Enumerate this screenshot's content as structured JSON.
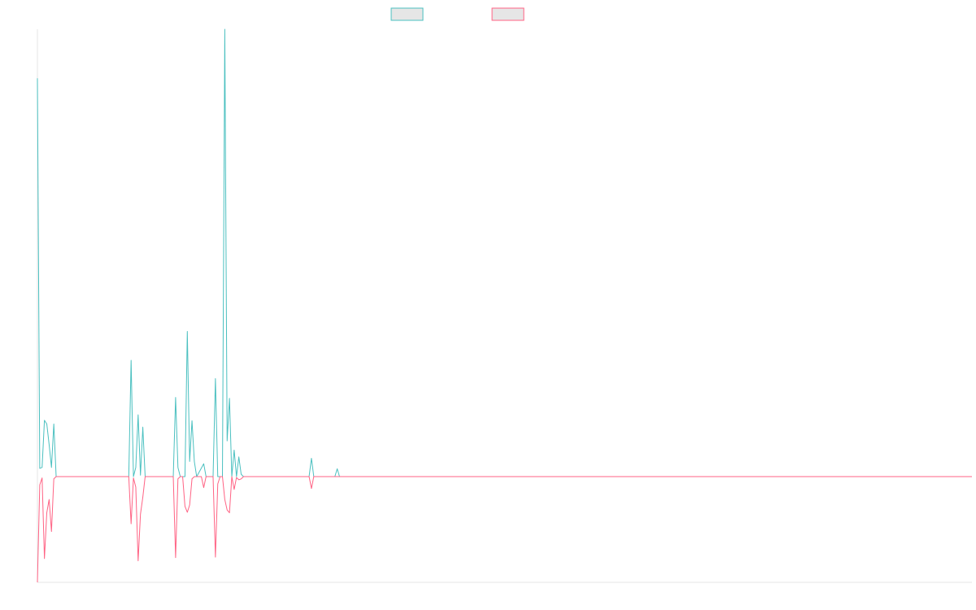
{
  "chart_data": {
    "type": "line",
    "title": "",
    "xlabel": "",
    "ylabel": "",
    "x_count": 400,
    "x_range": [
      0,
      399
    ],
    "ylim": [
      -23.1,
      97.7
    ],
    "grid": false,
    "legend_position": "top",
    "series": [
      {
        "name": "",
        "color": "#4bc0c0",
        "fill": "#e6e6e6",
        "points": [
          [
            0,
            87
          ],
          [
            1,
            1.8
          ],
          [
            2,
            2
          ],
          [
            3,
            12.3
          ],
          [
            4,
            11.5
          ],
          [
            5,
            7
          ],
          [
            6,
            2
          ],
          [
            7,
            11.5
          ],
          [
            8,
            0
          ],
          [
            35,
            0
          ],
          [
            36,
            0
          ],
          [
            37,
            0
          ],
          [
            38,
            0
          ],
          [
            39,
            0
          ],
          [
            40,
            25.4
          ],
          [
            41,
            0
          ],
          [
            42,
            2
          ],
          [
            43,
            13.5
          ],
          [
            44,
            0.3
          ],
          [
            45,
            10.8
          ],
          [
            46,
            0
          ],
          [
            58,
            0
          ],
          [
            59,
            17.3
          ],
          [
            60,
            2
          ],
          [
            61,
            0
          ],
          [
            62,
            0
          ],
          [
            63,
            0
          ],
          [
            64,
            31.7
          ],
          [
            65,
            3.3
          ],
          [
            66,
            12.2
          ],
          [
            67,
            3.3
          ],
          [
            68,
            0
          ],
          [
            71,
            2.8
          ],
          [
            72,
            0
          ],
          [
            73,
            0
          ],
          [
            74,
            0
          ],
          [
            75,
            0
          ],
          [
            76,
            21.4
          ],
          [
            77,
            0
          ],
          [
            78,
            0
          ],
          [
            79,
            0
          ],
          [
            80,
            97.7
          ],
          [
            81,
            7.8
          ],
          [
            82,
            17.1
          ],
          [
            83,
            0
          ],
          [
            84,
            5.8
          ],
          [
            85,
            0
          ],
          [
            86,
            4.3
          ],
          [
            87,
            0.5
          ],
          [
            88,
            0
          ],
          [
            115,
            0
          ],
          [
            116,
            0
          ],
          [
            117,
            4
          ],
          [
            118,
            0
          ],
          [
            119,
            0
          ],
          [
            120,
            0
          ],
          [
            127,
            0
          ],
          [
            128,
            1.7
          ],
          [
            129,
            0
          ],
          [
            399,
            0
          ]
        ]
      },
      {
        "name": "",
        "color": "#ff6384",
        "fill": "#e6e6e6",
        "points": [
          [
            0,
            -23.1
          ],
          [
            1,
            -1.8
          ],
          [
            2,
            -0.3
          ],
          [
            3,
            -17.9
          ],
          [
            4,
            -7.9
          ],
          [
            5,
            -5
          ],
          [
            6,
            -12
          ],
          [
            7,
            -0.5
          ],
          [
            8,
            0
          ],
          [
            35,
            0
          ],
          [
            36,
            0
          ],
          [
            37,
            0
          ],
          [
            38,
            0
          ],
          [
            39,
            0
          ],
          [
            40,
            -10.3
          ],
          [
            41,
            -0.3
          ],
          [
            42,
            -2.3
          ],
          [
            43,
            -18.4
          ],
          [
            44,
            -8.2
          ],
          [
            45,
            -4.5
          ],
          [
            46,
            0
          ],
          [
            58,
            0
          ],
          [
            59,
            -17.7
          ],
          [
            60,
            -0.5
          ],
          [
            61,
            0
          ],
          [
            62,
            0
          ],
          [
            63,
            -6.5
          ],
          [
            64,
            -7.8
          ],
          [
            65,
            -6.2
          ],
          [
            66,
            -0.5
          ],
          [
            67,
            0
          ],
          [
            70,
            0
          ],
          [
            71,
            -2.4
          ],
          [
            72,
            0
          ],
          [
            73,
            0
          ],
          [
            74,
            0
          ],
          [
            75,
            0
          ],
          [
            76,
            -17.6
          ],
          [
            77,
            -1.6
          ],
          [
            78,
            0
          ],
          [
            79,
            0
          ],
          [
            80,
            -5
          ],
          [
            81,
            -7.3
          ],
          [
            82,
            -7.9
          ],
          [
            83,
            0
          ],
          [
            84,
            -2.8
          ],
          [
            85,
            -0.2
          ],
          [
            86,
            -0.7
          ],
          [
            87,
            -0.5
          ],
          [
            88,
            0
          ],
          [
            115,
            0
          ],
          [
            116,
            0
          ],
          [
            117,
            -2.6
          ],
          [
            118,
            0
          ],
          [
            119,
            0
          ],
          [
            120,
            0
          ],
          [
            399,
            0
          ]
        ]
      }
    ]
  }
}
